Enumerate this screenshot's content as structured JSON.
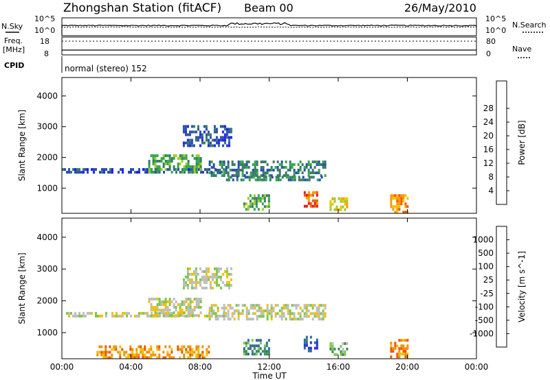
{
  "header": {
    "station": "Zhongshan Station (fitACF)",
    "beam": "Beam 00",
    "date": "26/May/2010"
  },
  "strip_panels": {
    "nsky_label": "N.Sky",
    "nsearch_label": "N.Search",
    "nsky_ticks": [
      "10^5",
      "10^0"
    ],
    "nsearch_ticks": [
      "10^5",
      "10^0"
    ],
    "freq_label": "Freq.",
    "freq_unit": "[MHz]",
    "freq_ticks": [
      "18",
      "8"
    ],
    "nave_label": "Nave",
    "nave_ticks": [
      "80",
      "0"
    ],
    "cpid_label": "CPID",
    "cpid_text": "normal (stereo) 152"
  },
  "chart_data": [
    {
      "type": "heatmap",
      "name": "power",
      "ylabel": "Slant Range [km]",
      "xlabel": "",
      "x_ticks": [
        "00:00",
        "04:00",
        "08:00",
        "12:00",
        "16:00",
        "20:00",
        "00:00"
      ],
      "y_ticks": [
        "1000",
        "2000",
        "3000",
        "4000"
      ],
      "ylim": [
        180,
        4600
      ],
      "xlim": [
        0,
        24
      ],
      "colorbar": {
        "label": "Power [dB]",
        "ticks": [
          "4",
          "8",
          "12",
          "16",
          "20",
          "24",
          "28"
        ],
        "colors": [
          "#1f1fff",
          "#2a4faa",
          "#3a7a6a",
          "#35a84a",
          "#9ccc2a",
          "#f2c200",
          "#f59a00",
          "#ee5a00",
          "#e61414"
        ]
      },
      "echo_regions": [
        {
          "t0": 0.0,
          "t1": 9.5,
          "r0": 1500,
          "r1": 1650,
          "level": 1
        },
        {
          "t0": 5.0,
          "t1": 8.0,
          "r0": 1550,
          "r1": 2100,
          "level": 3
        },
        {
          "t0": 7.0,
          "t1": 9.8,
          "r0": 2400,
          "r1": 3050,
          "level": 1
        },
        {
          "t0": 8.5,
          "t1": 15.2,
          "r0": 1400,
          "r1": 1900,
          "level": 2
        },
        {
          "t0": 9.5,
          "t1": 15.0,
          "r0": 1250,
          "r1": 1400,
          "level": 2
        },
        {
          "t0": 14.0,
          "t1": 14.8,
          "r0": 400,
          "r1": 900,
          "level": 7
        },
        {
          "t0": 15.5,
          "t1": 16.5,
          "r0": 300,
          "r1": 700,
          "level": 5
        },
        {
          "t0": 19.0,
          "t1": 20.0,
          "r0": 200,
          "r1": 800,
          "level": 6
        },
        {
          "t0": 10.5,
          "t1": 12.0,
          "r0": 300,
          "r1": 800,
          "level": 3
        }
      ]
    },
    {
      "type": "heatmap",
      "name": "velocity",
      "ylabel": "Slant Range [km]",
      "xlabel": "Time UT",
      "x_ticks": [
        "00:00",
        "04:00",
        "08:00",
        "12:00",
        "16:00",
        "20:00",
        "00:00"
      ],
      "y_ticks": [
        "1000",
        "2000",
        "3000",
        "4000"
      ],
      "ylim": [
        180,
        4600
      ],
      "xlim": [
        0,
        24
      ],
      "colorbar": {
        "label": "Velocity [m s^-1]",
        "ticks": [
          "1000",
          "500",
          "100",
          "25",
          "-25",
          "-100",
          "-500",
          "-1000"
        ],
        "colors": [
          "#1f2fd8",
          "#2d6aa0",
          "#3c8a5a",
          "#7cc84a",
          "#bdbdbd",
          "#f0c000",
          "#f39000",
          "#ef5500",
          "#e61414"
        ]
      },
      "echo_regions": [
        {
          "t0": 0.0,
          "t1": 9.5,
          "r0": 1500,
          "r1": 1650,
          "level": 4
        },
        {
          "t0": 5.0,
          "t1": 8.0,
          "r0": 1550,
          "r1": 2100,
          "level": 4
        },
        {
          "t0": 7.0,
          "t1": 9.8,
          "r0": 2400,
          "r1": 3050,
          "level": 4
        },
        {
          "t0": 8.5,
          "t1": 15.2,
          "r0": 1400,
          "r1": 1900,
          "level": 4
        },
        {
          "t0": 10.5,
          "t1": 12.0,
          "r0": 300,
          "r1": 800,
          "level": 2
        },
        {
          "t0": 14.0,
          "t1": 14.8,
          "r0": 400,
          "r1": 900,
          "level": 1
        },
        {
          "t0": 15.5,
          "t1": 16.5,
          "r0": 300,
          "r1": 700,
          "level": 3
        },
        {
          "t0": 19.0,
          "t1": 20.0,
          "r0": 200,
          "r1": 800,
          "level": 6
        },
        {
          "t0": 2.0,
          "t1": 8.5,
          "r0": 200,
          "r1": 600,
          "level": 6
        }
      ]
    }
  ]
}
